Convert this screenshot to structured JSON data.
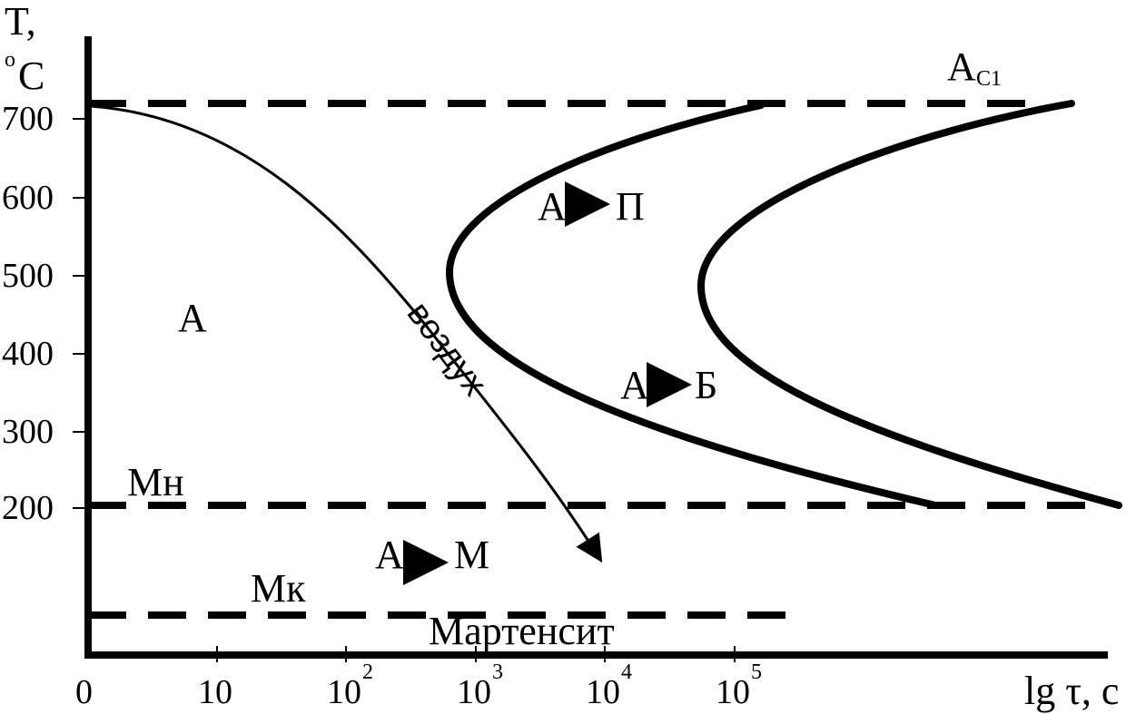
{
  "axes": {
    "y_label_line1": "T,",
    "y_label_deg": "o",
    "y_label_unit": "C",
    "y_ticks": [
      "700",
      "600",
      "500",
      "400",
      "300",
      "200"
    ],
    "x_label": "lg τ, c",
    "x_ticks": [
      {
        "base": "0",
        "exp": ""
      },
      {
        "base": "10",
        "exp": ""
      },
      {
        "base": "10",
        "exp": "2"
      },
      {
        "base": "10",
        "exp": "3"
      },
      {
        "base": "10",
        "exp": "4"
      },
      {
        "base": "10",
        "exp": "5"
      }
    ]
  },
  "lines": {
    "ac1_main": "A",
    "ac1_sub": "С1",
    "mn": "Мн",
    "mk": "Мк",
    "martensite": "Мартенсит"
  },
  "regions": {
    "austenite": "А",
    "a_to_p_from": "А",
    "a_to_p_to": "П",
    "a_to_b_from": "А",
    "a_to_b_to": "Б",
    "a_to_m_from": "А",
    "a_to_m_to": "М"
  },
  "cooling_curve": {
    "label": "воздух"
  },
  "colors": {
    "ink": "#000000",
    "background": "#ffffff"
  }
}
